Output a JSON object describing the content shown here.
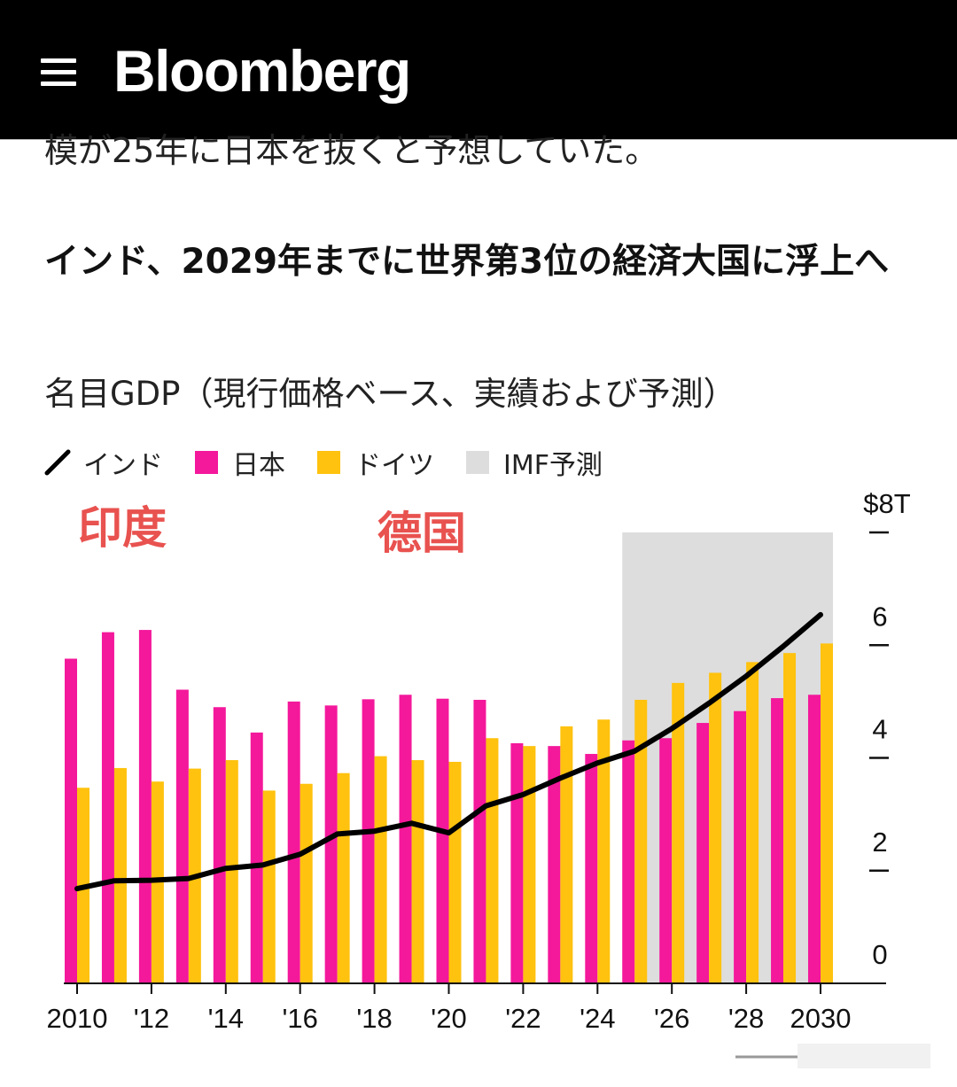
{
  "header": {
    "brand": "Bloomberg",
    "menu_icon": "hamburger-menu-icon"
  },
  "article": {
    "previous_text_partial": "模が25年に日本を抜くと予想していた。"
  },
  "colors": {
    "india": "#000000",
    "japan": "#f4189b",
    "germany": "#ffc20e",
    "forecast": "#dddddd",
    "annotation": "#e8524f"
  },
  "chart_data": {
    "type": "bar",
    "title": "インド、2029年までに世界第3位の経済大国に浮上へ",
    "subtitle": "名目GDP（現行価格ベース、実績および予測）",
    "legend": [
      {
        "name": "インド",
        "kind": "line"
      },
      {
        "name": "日本",
        "kind": "bar"
      },
      {
        "name": "ドイツ",
        "kind": "bar"
      },
      {
        "name": "IMF予測",
        "kind": "area"
      }
    ],
    "annotations": [
      "印度",
      "德国"
    ],
    "x": [
      2010,
      2011,
      2012,
      2013,
      2014,
      2015,
      2016,
      2017,
      2018,
      2019,
      2020,
      2021,
      2022,
      2023,
      2024,
      2025,
      2026,
      2027,
      2028,
      2029,
      2030
    ],
    "x_tick_labels": [
      "2010",
      "'12",
      "'14",
      "'16",
      "'18",
      "'20",
      "'22",
      "'24",
      "'26",
      "'28",
      "2030"
    ],
    "x_tick_years": [
      2010,
      2012,
      2014,
      2016,
      2018,
      2020,
      2022,
      2024,
      2026,
      2028,
      2030
    ],
    "y_tick_labels": [
      "0",
      "2",
      "4",
      "6",
      "$8T"
    ],
    "y_ticks": [
      0,
      2,
      4,
      6,
      8
    ],
    "ylim": [
      0,
      8
    ],
    "forecast_range": [
      2025,
      2030
    ],
    "series": [
      {
        "name": "日本",
        "type": "bar",
        "values": [
          5.76,
          6.23,
          6.27,
          5.21,
          4.9,
          4.45,
          5.0,
          4.93,
          5.04,
          5.12,
          5.05,
          5.03,
          4.26,
          4.21,
          4.07,
          4.31,
          4.35,
          4.62,
          4.83,
          5.06,
          5.12
        ]
      },
      {
        "name": "ドイツ",
        "type": "bar",
        "values": [
          3.47,
          3.82,
          3.58,
          3.81,
          3.96,
          3.42,
          3.54,
          3.73,
          4.03,
          3.96,
          3.93,
          4.35,
          4.21,
          4.56,
          4.68,
          5.03,
          5.33,
          5.51,
          5.7,
          5.86,
          6.03
        ]
      },
      {
        "name": "インド",
        "type": "line",
        "values": [
          1.68,
          1.82,
          1.83,
          1.86,
          2.04,
          2.1,
          2.29,
          2.65,
          2.7,
          2.84,
          2.67,
          3.15,
          3.35,
          3.64,
          3.91,
          4.12,
          4.52,
          4.97,
          5.45,
          5.98,
          6.54
        ]
      }
    ]
  }
}
